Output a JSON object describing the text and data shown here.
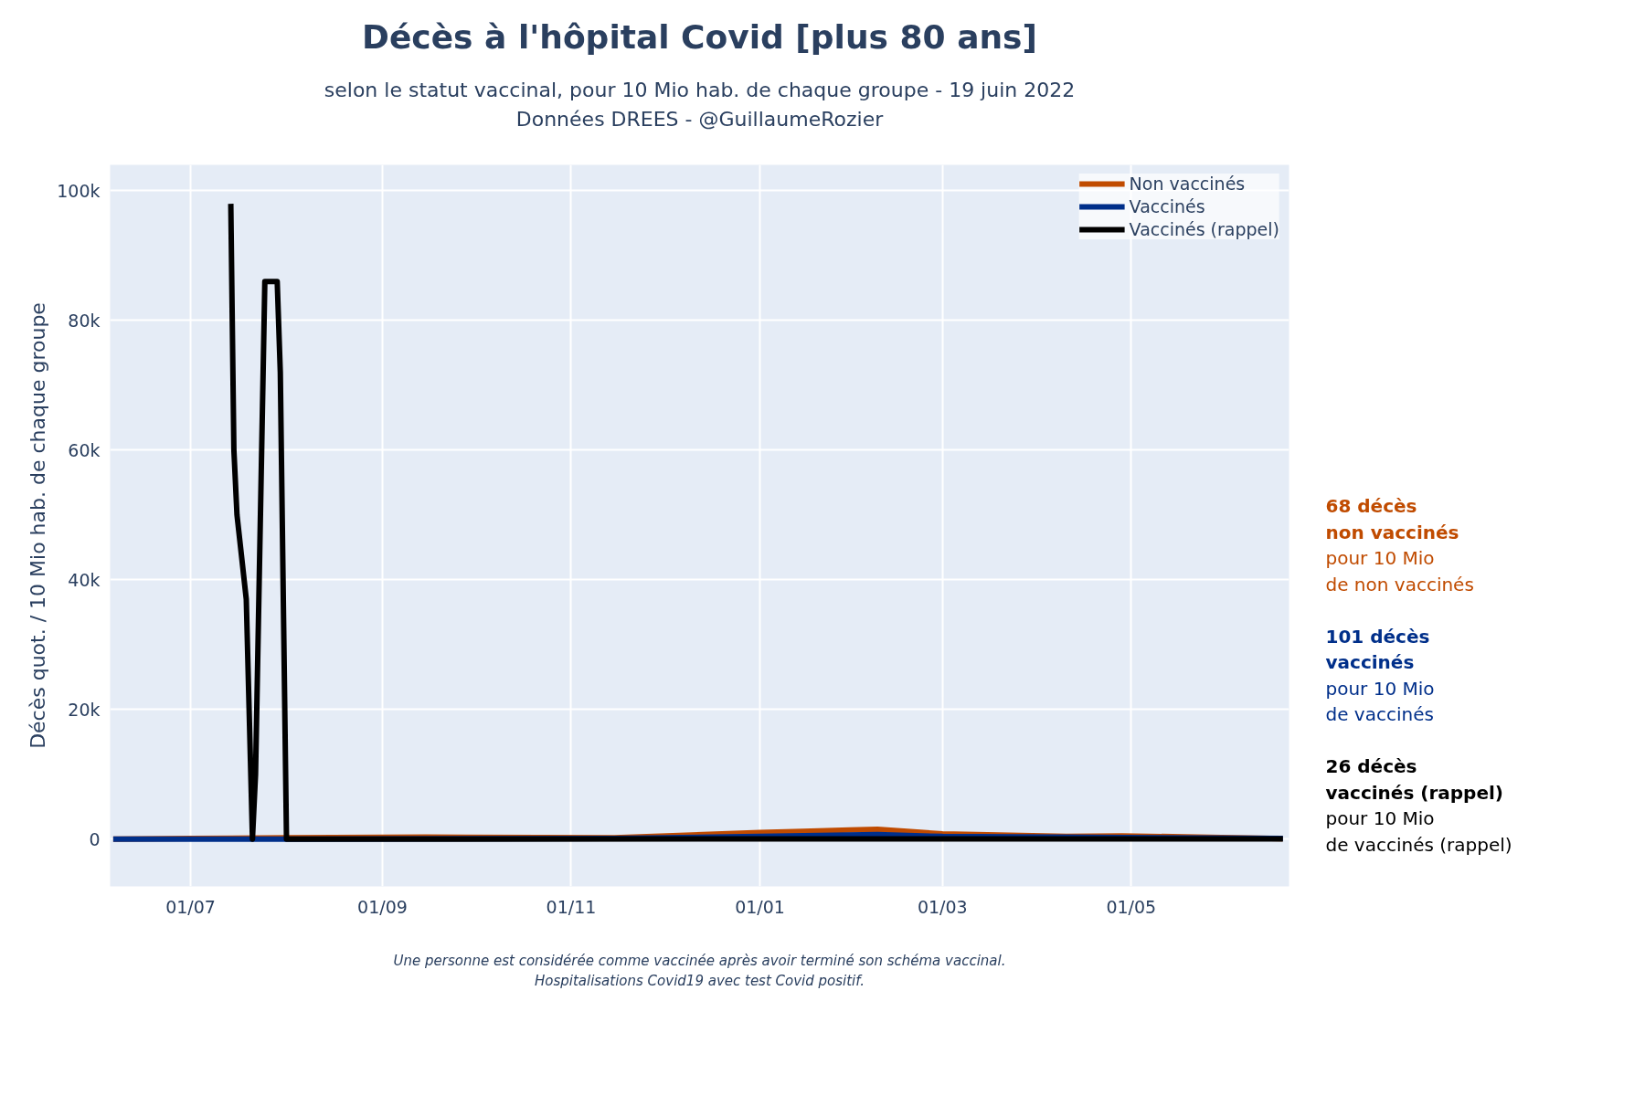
{
  "chart_data": {
    "type": "line",
    "title": "Décès à l'hôpital Covid [plus 80 ans]",
    "subtitle": "selon le statut vaccinal, pour 10 Mio hab. de chaque groupe - 19 juin 2022\nDonnées DREES - @GuillaumeRozier",
    "ylabel": "Décès quot. / 10 Mio hab. de chaque groupe",
    "series": [
      {
        "name": "Non vaccinés",
        "color": "#c04b00",
        "x": [
          "2021-06-06",
          "2021-07-01",
          "2021-08-01",
          "2021-09-15",
          "2021-11-15",
          "2022-01-01",
          "2022-01-15",
          "2022-01-30",
          "2022-02-08",
          "2022-03-01",
          "2022-04-10",
          "2022-04-28",
          "2022-06-19"
        ],
        "values": [
          0,
          100,
          200,
          300,
          200,
          1000,
          1200,
          1400,
          1500,
          800,
          400,
          500,
          68
        ]
      },
      {
        "name": "Vaccinés",
        "color": "#002f8a",
        "x": [
          "2021-06-06",
          "2021-08-01",
          "2021-11-15",
          "2022-01-01",
          "2022-02-08",
          "2022-03-01",
          "2022-06-19"
        ],
        "values": [
          0,
          0,
          100,
          400,
          700,
          400,
          101
        ]
      },
      {
        "name": "Vaccinés (rappel)",
        "color": "#000000",
        "x": [
          "2021-07-14",
          "2021-07-15",
          "2021-07-16",
          "2021-07-19",
          "2021-07-21",
          "2021-07-22",
          "2021-07-25",
          "2021-07-29",
          "2021-07-30",
          "2021-08-01",
          "2022-06-19"
        ],
        "values": [
          98000,
          60000,
          50000,
          37000,
          0,
          10000,
          86000,
          86000,
          72000,
          0,
          26
        ]
      }
    ],
    "xlim": [
      "2021-06-05",
      "2022-06-21"
    ],
    "xticks": [
      {
        "value": "2021-07-01",
        "label": "01/07"
      },
      {
        "value": "2021-09-01",
        "label": "01/09"
      },
      {
        "value": "2021-11-01",
        "label": "01/11"
      },
      {
        "value": "2022-01-01",
        "label": "01/01"
      },
      {
        "value": "2022-03-01",
        "label": "01/03"
      },
      {
        "value": "2022-05-01",
        "label": "01/05"
      }
    ],
    "ylim": [
      -7300,
      104000
    ],
    "yticks": [
      {
        "value": 0,
        "label": "0"
      },
      {
        "value": 20000,
        "label": "20k"
      },
      {
        "value": 40000,
        "label": "40k"
      },
      {
        "value": 60000,
        "label": "60k"
      },
      {
        "value": 80000,
        "label": "80k"
      },
      {
        "value": 100000,
        "label": "100k"
      }
    ],
    "grid": true,
    "legend": "top right",
    "line_style": "solid",
    "annotations": [
      "68 décès\nnon vaccinés\npour 10 Mio\nde non vaccinés",
      "101 décès\nvaccinés\npour 10 Mio\nde vaccinés",
      "26 décès\nvaccinés (rappel)\npour 10 Mio\nde vaccinés (rappel)",
      "Une personne est considérée comme vaccinée après avoir terminé son schéma vaccinal.\nHospitalisations Covid19 avec test Covid positif."
    ]
  }
}
